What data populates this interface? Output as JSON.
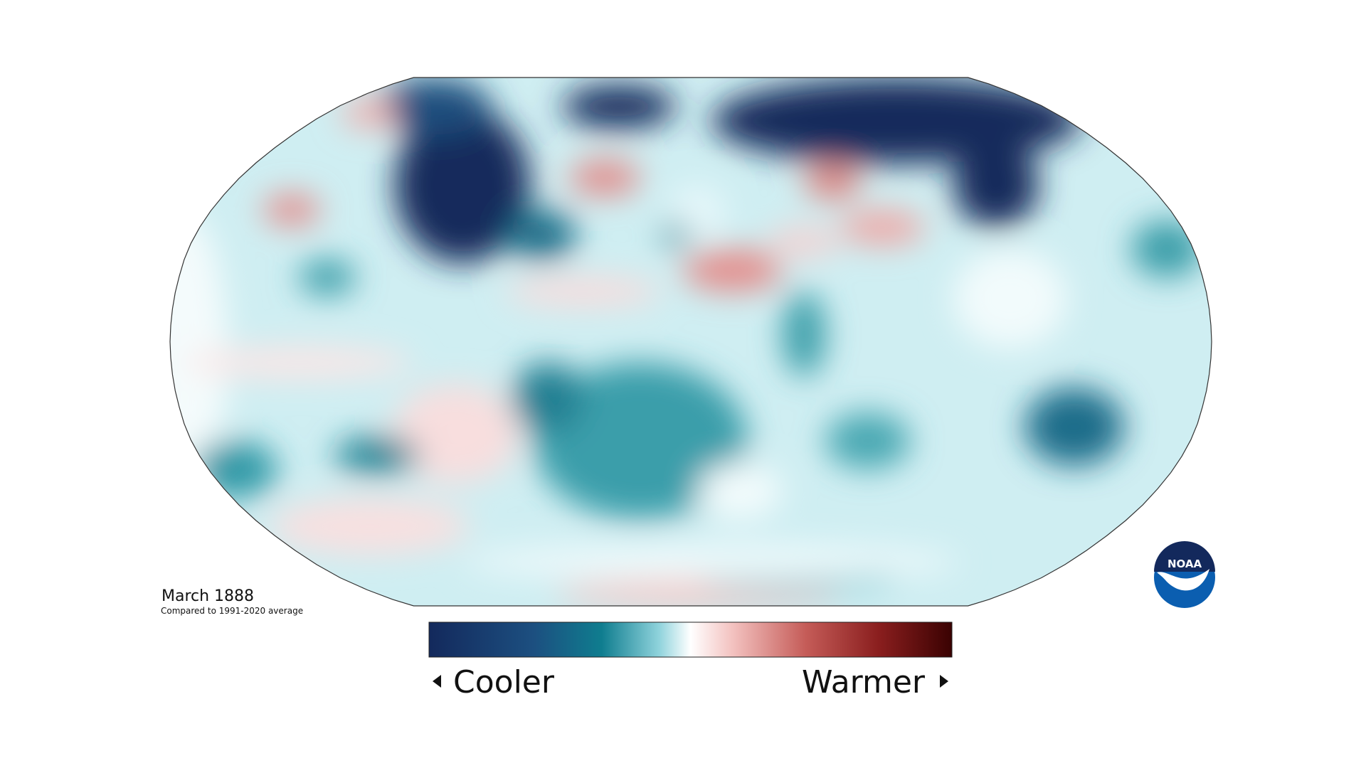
{
  "map": {
    "title": "March 1888",
    "subtitle": "Compared to 1991-2020 average"
  },
  "legend": {
    "low_label": "Cooler",
    "high_label": "Warmer"
  },
  "logo": {
    "text": "NOAA"
  }
}
